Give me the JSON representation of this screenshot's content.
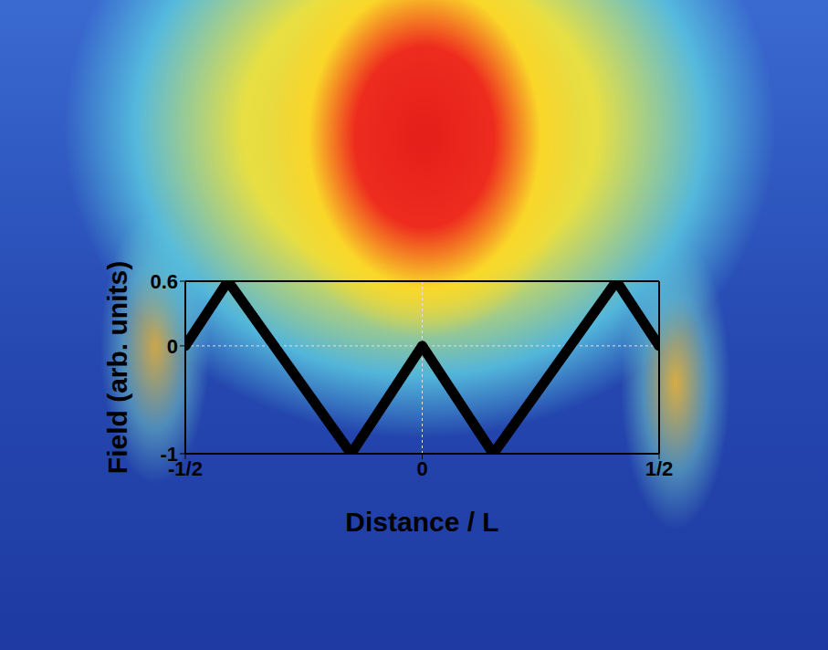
{
  "chart_data": {
    "type": "line",
    "x": [
      -0.5,
      -0.41,
      -0.15,
      0,
      0.15,
      0.41,
      0.5
    ],
    "values": [
      0,
      0.6,
      -1,
      0,
      -1,
      0.6,
      0
    ],
    "color": "#000000",
    "xlabel": "Distance / L",
    "ylabel": "Field (arb. units)",
    "xlim": [
      -0.5,
      0.5
    ],
    "xticks": [
      {
        "value": -0.5,
        "label": "-1/2"
      },
      {
        "value": 0,
        "label": "0"
      },
      {
        "value": 0.5,
        "label": "1/2"
      }
    ],
    "ylim": [
      -1,
      0.6
    ],
    "yticks": [
      -1,
      0,
      0.6
    ],
    "grid": true,
    "marker": "none",
    "line_style": "solid"
  }
}
